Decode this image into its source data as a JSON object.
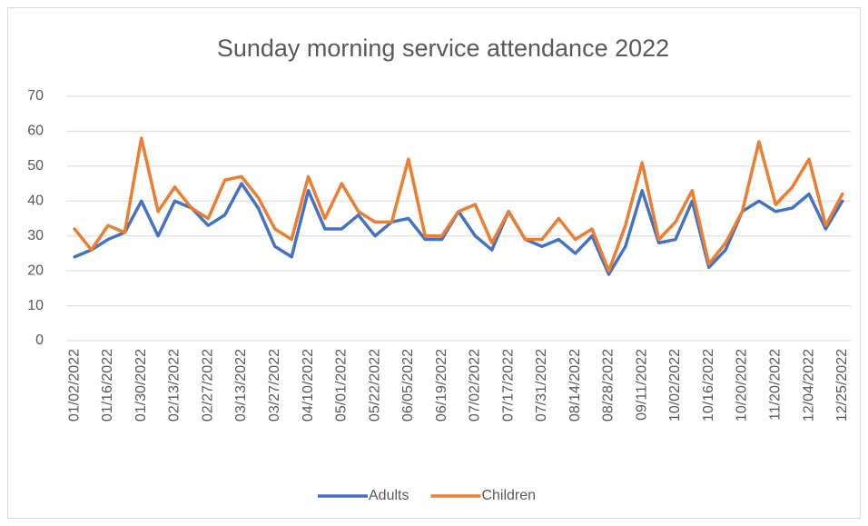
{
  "chart_data": {
    "type": "line",
    "title": "Sunday morning service attendance 2022",
    "categories": [
      "01/02/2022",
      null,
      "01/16/2022",
      null,
      "01/30/2022",
      null,
      "02/13/2022",
      null,
      "02/27/2022",
      null,
      "03/13/2022",
      null,
      "03/27/2022",
      null,
      "04/10/2022",
      null,
      "05/01/2022",
      null,
      "05/22/2022",
      null,
      "06/05/2022",
      null,
      "06/19/2022",
      null,
      "07/02/2022",
      null,
      "07/17/2022",
      null,
      "07/31/2022",
      null,
      "08/14/2022",
      null,
      "08/28/2022",
      null,
      "09/11/2022",
      null,
      "10/02/2022",
      null,
      "10/16/2022",
      null,
      "10/20/2022",
      null,
      "11/20/2022",
      null,
      "12/04/2022",
      null,
      "12/25/2022"
    ],
    "series": [
      {
        "name": "Adults",
        "color": "#4472c4",
        "values": [
          24,
          26,
          29,
          31,
          40,
          30,
          40,
          38,
          33,
          36,
          45,
          38,
          27,
          24,
          43,
          32,
          32,
          36,
          30,
          34,
          35,
          29,
          29,
          37,
          30,
          26,
          37,
          29,
          27,
          29,
          25,
          30,
          19,
          27,
          43,
          28,
          29,
          40,
          21,
          26,
          37,
          40,
          37,
          38,
          42,
          32,
          40
        ]
      },
      {
        "name": "Children",
        "color": "#ed7d31",
        "values": [
          32,
          26,
          33,
          31,
          58,
          37,
          44,
          38,
          35,
          46,
          47,
          41,
          32,
          29,
          47,
          35,
          45,
          37,
          34,
          34,
          52,
          30,
          30,
          37,
          39,
          28,
          37,
          29,
          29,
          35,
          29,
          32,
          20,
          33,
          51,
          29,
          34,
          43,
          22,
          28,
          37,
          57,
          39,
          44,
          52,
          33,
          42
        ]
      }
    ],
    "ylim": [
      0,
      70
    ],
    "yticks": [
      0,
      10,
      20,
      30,
      40,
      50,
      60,
      70
    ],
    "grid": true,
    "legend": "bottom"
  }
}
